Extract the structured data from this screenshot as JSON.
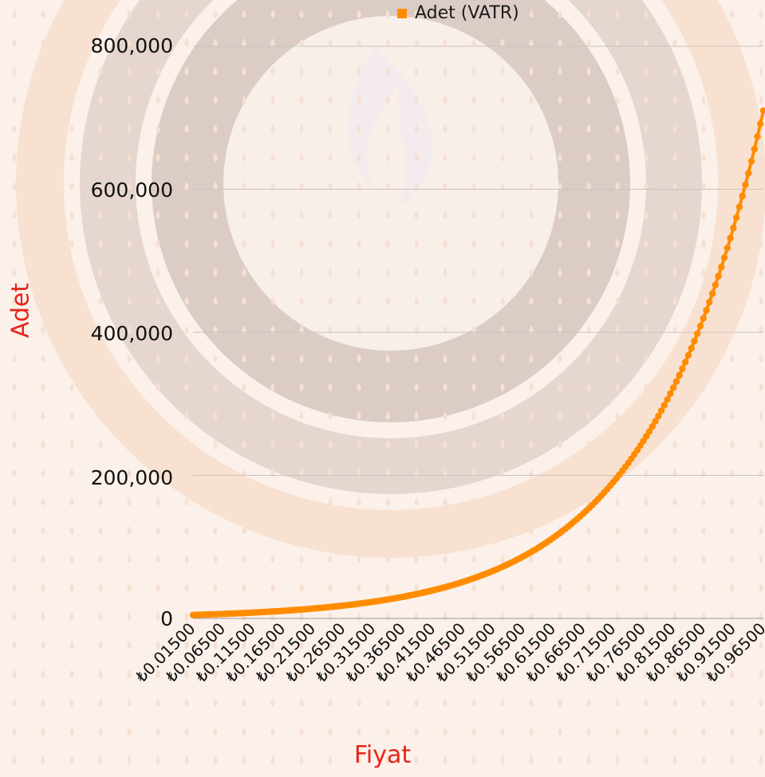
{
  "chart_data": {
    "type": "line",
    "title": "",
    "xlabel": "Fiyat",
    "ylabel": "Adet",
    "legend": {
      "position": "top",
      "entries": [
        "Adet (VATR)"
      ]
    },
    "series": [
      {
        "name": "Adet (VATR)",
        "color": "#ff8c00",
        "x_start": 0.015,
        "x_step": 0.005,
        "count": 191,
        "model": "exponential",
        "y_first": 4800,
        "y_last": 710000
      }
    ],
    "ylim": [
      0,
      800000
    ],
    "yticks": [
      "0",
      "200,000",
      "400,000",
      "600,000",
      "800,000"
    ],
    "xtick_labels": [
      "₺0.01500",
      "₺0.06500",
      "₺0.11500",
      "₺0.16500",
      "₺0.21500",
      "₺0.26500",
      "₺0.31500",
      "₺0.36500",
      "₺0.41500",
      "₺0.46500",
      "₺0.51500",
      "₺0.56500",
      "₺0.61500",
      "₺0.66500",
      "₺0.71500",
      "₺0.76500",
      "₺0.81500",
      "₺0.86500",
      "₺0.91500",
      "₺0.96500"
    ],
    "grid": true
  }
}
